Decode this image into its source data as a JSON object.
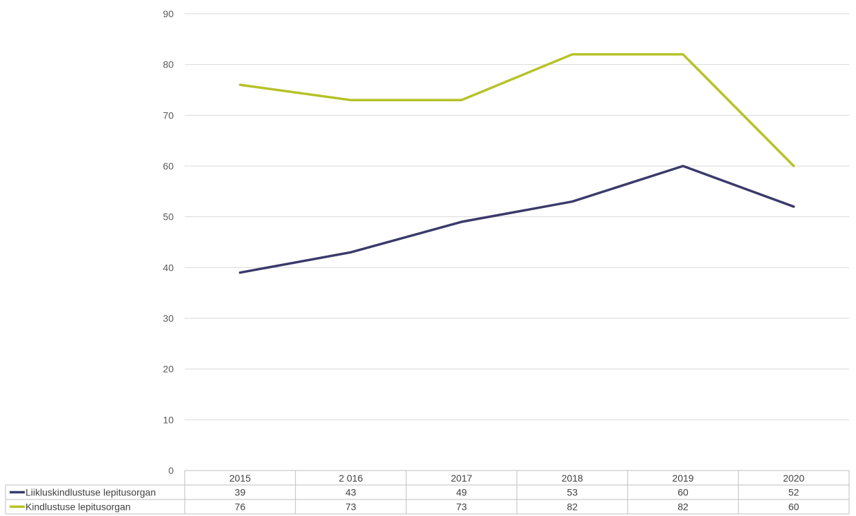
{
  "chart_data": {
    "type": "line",
    "categories": [
      "2015",
      "2 016",
      "2017",
      "2018",
      "2019",
      "2020"
    ],
    "series": [
      {
        "name": "Liikluskindlustuse lepitusorgan",
        "values": [
          39,
          43,
          49,
          53,
          60,
          52
        ],
        "labels": [
          "39",
          "43",
          "49",
          "53",
          "60",
          "52"
        ],
        "color": "#3b3a6b"
      },
      {
        "name": "Kindlustuse lepitusorgan",
        "values": [
          76,
          73,
          73,
          82,
          82,
          60
        ],
        "labels": [
          "76",
          "73",
          "73",
          "82",
          "82",
          "60"
        ],
        "color": "#b5c228"
      }
    ],
    "ylim": [
      0,
      90
    ],
    "yticks": [
      "0",
      "10",
      "20",
      "30",
      "40",
      "50",
      "60",
      "70",
      "80",
      "90"
    ],
    "grid": true,
    "legend": "data-table-left",
    "gridColor": "#d9d9d9",
    "tableBorderColor": "#bfbfbf"
  }
}
